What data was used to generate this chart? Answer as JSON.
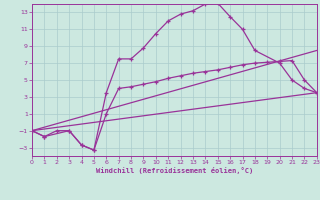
{
  "xlabel": "Windchill (Refroidissement éolien,°C)",
  "bg_color": "#cce8e0",
  "grid_color": "#aacccc",
  "line_color": "#993399",
  "xlim": [
    0,
    23
  ],
  "ylim": [
    -4,
    14
  ],
  "xticks": [
    0,
    1,
    2,
    3,
    4,
    5,
    6,
    7,
    8,
    9,
    10,
    11,
    12,
    13,
    14,
    15,
    16,
    17,
    18,
    19,
    20,
    21,
    22,
    23
  ],
  "yticks": [
    -3,
    -1,
    1,
    3,
    5,
    7,
    9,
    11,
    13
  ],
  "line1_x": [
    0,
    1,
    2,
    3,
    4,
    5,
    6,
    7,
    8,
    9,
    10,
    11,
    12,
    13,
    14,
    15,
    16,
    17,
    18,
    20,
    21,
    22,
    23
  ],
  "line1_y": [
    -1,
    -1.7,
    -1.0,
    -1.0,
    -2.7,
    -3.3,
    3.5,
    7.5,
    7.5,
    8.8,
    10.5,
    12.0,
    12.8,
    13.2,
    14.0,
    14.1,
    12.5,
    11.0,
    8.5,
    7.0,
    5.0,
    4.0,
    3.5
  ],
  "line2_x": [
    0,
    1,
    3,
    4,
    5,
    6,
    7,
    8,
    9,
    10,
    11,
    12,
    13,
    14,
    15,
    16,
    17,
    18,
    19,
    20,
    21,
    22,
    23
  ],
  "line2_y": [
    -1,
    -1.7,
    -1.0,
    -2.7,
    -3.3,
    1.0,
    4.0,
    4.2,
    4.5,
    4.8,
    5.2,
    5.5,
    5.8,
    6.0,
    6.2,
    6.5,
    6.8,
    7.0,
    7.1,
    7.2,
    7.3,
    5.0,
    3.5
  ],
  "line3_x": [
    0,
    23
  ],
  "line3_y": [
    -1,
    3.5
  ],
  "line4_x": [
    0,
    23
  ],
  "line4_y": [
    -1,
    8.5
  ]
}
